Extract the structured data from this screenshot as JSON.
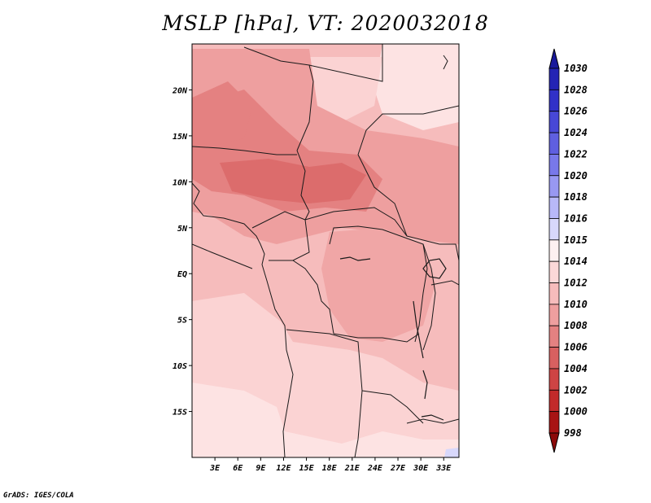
{
  "title": "MSLP [hPa], VT: 2020032018",
  "credit": "GrADS: IGES/COLA",
  "map": {
    "lon_range": [
      0,
      35
    ],
    "lat_range": [
      -20,
      25
    ],
    "lat_ticks": [
      {
        "value": 20,
        "label": "20N"
      },
      {
        "value": 15,
        "label": "15N"
      },
      {
        "value": 10,
        "label": "10N"
      },
      {
        "value": 5,
        "label": "5N"
      },
      {
        "value": 0,
        "label": "EQ"
      },
      {
        "value": -5,
        "label": "5S"
      },
      {
        "value": -10,
        "label": "10S"
      },
      {
        "value": -15,
        "label": "15S"
      }
    ],
    "lon_ticks": [
      {
        "value": 3,
        "label": "3E"
      },
      {
        "value": 6,
        "label": "6E"
      },
      {
        "value": 9,
        "label": "9E"
      },
      {
        "value": 12,
        "label": "12E"
      },
      {
        "value": 15,
        "label": "15E"
      },
      {
        "value": 18,
        "label": "18E"
      },
      {
        "value": 21,
        "label": "21E"
      },
      {
        "value": 24,
        "label": "24E"
      },
      {
        "value": 27,
        "label": "27E"
      },
      {
        "value": 30,
        "label": "30E"
      },
      {
        "value": 33,
        "label": "33E"
      }
    ]
  },
  "colorbar": {
    "labels": [
      "1030",
      "1028",
      "1026",
      "1024",
      "1022",
      "1020",
      "1018",
      "1016",
      "1015",
      "1014",
      "1012",
      "1010",
      "1008",
      "1006",
      "1004",
      "1002",
      "1000",
      "998"
    ],
    "colors": [
      "#1a1a9c",
      "#2424b4",
      "#3131c8",
      "#4848d6",
      "#5f5fe0",
      "#7878ea",
      "#9898f2",
      "#b8b8f8",
      "#d8d8fb",
      "#fdf1f1",
      "#fbd8d8",
      "#f6bcbc",
      "#ee9f9f",
      "#e48181",
      "#d86060",
      "#ce4444",
      "#c22a2a",
      "#a81414",
      "#8c0a0a"
    ]
  }
}
